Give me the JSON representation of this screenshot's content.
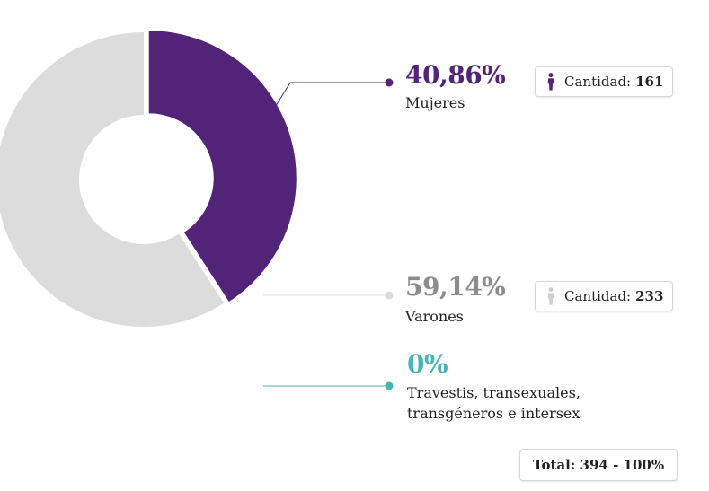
{
  "colors": {
    "mujeres": "#51247a",
    "varones": "#dcdcdc",
    "varones_text": "#8c8c8c",
    "trans": "#45b5b5",
    "varones_icon": "#cfcfcf"
  },
  "chart_data": {
    "type": "pie",
    "variant": "donut",
    "title": "",
    "unit": "%",
    "categories": [
      "Mujeres",
      "Varones",
      "Travestis, transexuales, transgéneros e intersex"
    ],
    "values": [
      40.86,
      59.14,
      0
    ],
    "counts": [
      161,
      233,
      0
    ],
    "legend_placement": "right"
  },
  "segments": [
    {
      "key": "mujeres",
      "percent_label": "40,86%",
      "label": "Mujeres",
      "count_prefix": "Cantidad:",
      "count": "161",
      "icon": "person-icon"
    },
    {
      "key": "varones",
      "percent_label": "59,14%",
      "label": "Varones",
      "count_prefix": "Cantidad:",
      "count": "233",
      "icon": "person-icon"
    },
    {
      "key": "trans",
      "percent_label": "0%",
      "label_line1": "Travestis, transexuales,",
      "label_line2": "transgéneros e intersex"
    }
  ],
  "total": {
    "label": "Total: 394 - 100%"
  }
}
